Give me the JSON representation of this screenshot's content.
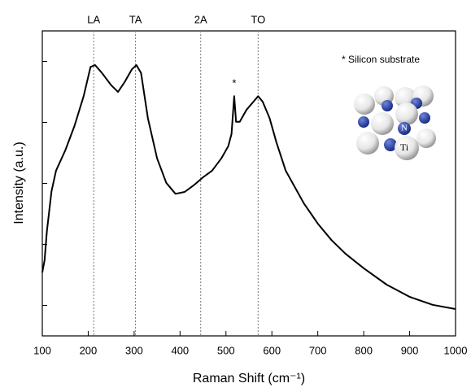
{
  "chart_data": {
    "type": "line",
    "color": "#000000",
    "xlabel": "Raman Shift (cm⁻¹)",
    "ylabel": "Intensity (a.u.)",
    "x": [
      100,
      105,
      110,
      120,
      130,
      150,
      170,
      190,
      205,
      215,
      230,
      250,
      265,
      280,
      295,
      305,
      315,
      330,
      350,
      370,
      390,
      410,
      430,
      450,
      470,
      490,
      505,
      512,
      518,
      522,
      530,
      545,
      560,
      570,
      580,
      595,
      610,
      630,
      650,
      670,
      700,
      730,
      760,
      800,
      850,
      900,
      950,
      1000
    ],
    "values": [
      1.04,
      1.24,
      1.71,
      2.37,
      2.71,
      3.04,
      3.44,
      3.93,
      4.41,
      4.44,
      4.31,
      4.11,
      4.0,
      4.17,
      4.37,
      4.44,
      4.31,
      3.57,
      2.91,
      2.51,
      2.33,
      2.36,
      2.47,
      2.6,
      2.71,
      2.91,
      3.11,
      3.31,
      3.93,
      3.51,
      3.51,
      3.71,
      3.84,
      3.93,
      3.84,
      3.57,
      3.17,
      2.71,
      2.44,
      2.17,
      1.84,
      1.57,
      1.35,
      1.11,
      0.84,
      0.64,
      0.51,
      0.44
    ],
    "xlim": [
      100,
      1000
    ],
    "ylim": [
      0,
      5
    ],
    "xticks": [
      100,
      200,
      300,
      400,
      500,
      600,
      700,
      800,
      900,
      1000
    ],
    "yticks": [
      0.5,
      1.5,
      2.5,
      3.5,
      4.5
    ],
    "vlines": [
      {
        "x": 212,
        "label": "LA"
      },
      {
        "x": 303,
        "label": "TA"
      },
      {
        "x": 445,
        "label": "2A"
      },
      {
        "x": 570,
        "label": "TO"
      }
    ],
    "annotations": [
      {
        "text": "*",
        "x": 518,
        "y": 4.13
      },
      {
        "text": "* Silicon substrate"
      }
    ],
    "inset_labels": [
      "N",
      "Ti"
    ]
  }
}
